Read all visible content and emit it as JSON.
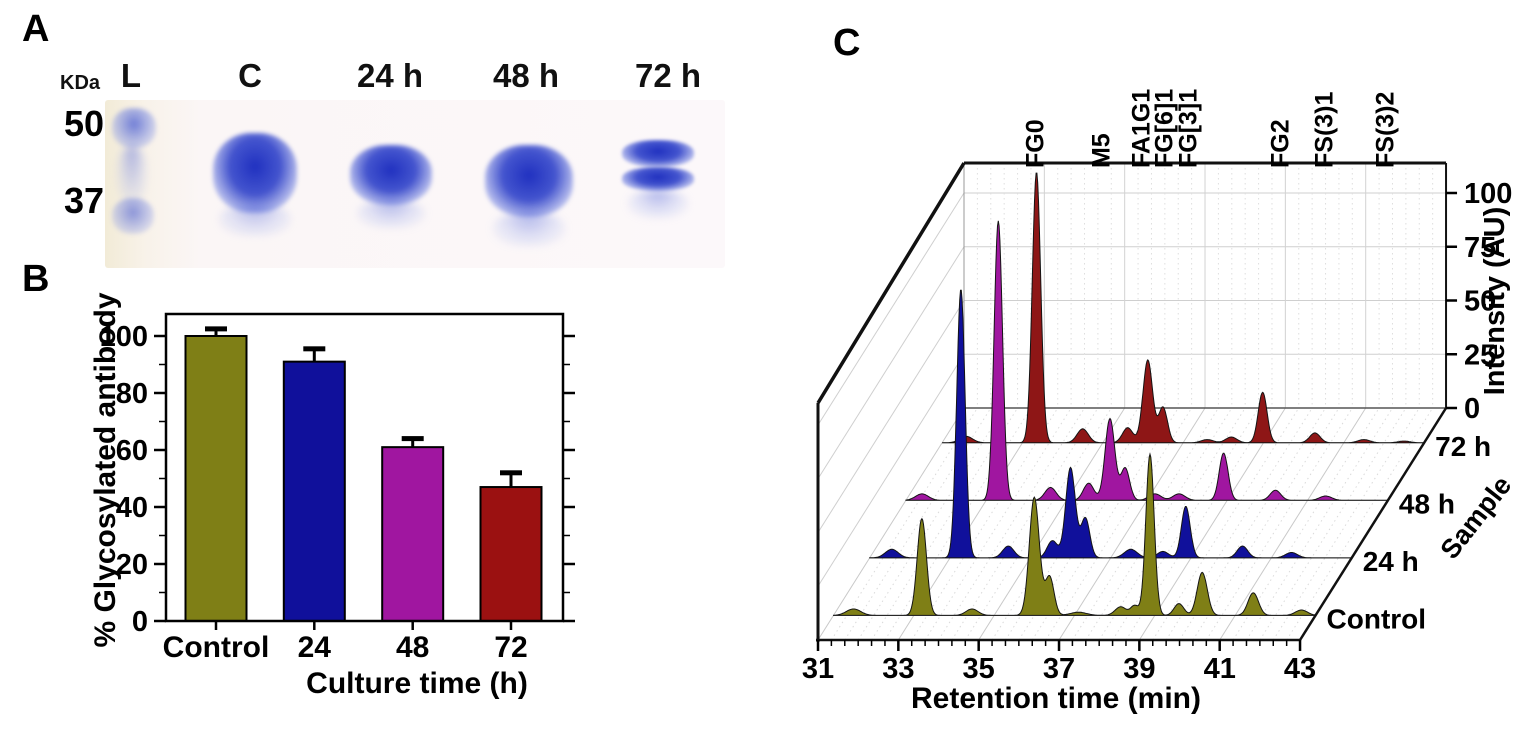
{
  "panels": {
    "a": "A",
    "b": "B",
    "c": "C"
  },
  "gel": {
    "units_label": "KDa",
    "marker_labels": [
      "50",
      "37"
    ],
    "lane_labels": [
      "L",
      "C",
      "24 h",
      "48 h",
      "72 h"
    ]
  },
  "chart_data": [
    {
      "type": "bar",
      "panel": "B",
      "categories": [
        "Control",
        "24",
        "48",
        "72"
      ],
      "values": [
        100,
        91,
        61,
        47
      ],
      "errors": [
        2.5,
        4.5,
        3,
        5
      ],
      "bar_colors": [
        "#7f7f16",
        "#10109b",
        "#a016a0",
        "#9b1111"
      ],
      "xlabel": "Culture time (h)",
      "ylabel": "% Glycosylated antibody",
      "ylim": [
        0,
        108
      ],
      "yticks": [
        0,
        20,
        40,
        60,
        80,
        100
      ],
      "grid": false,
      "legend": "none"
    },
    {
      "type": "area",
      "subtype": "3d-waterfall-chromatogram",
      "panel": "C",
      "xlabel": "Retention time (min)",
      "ylabel": "Intensity (AU)",
      "zlabel": "Sample",
      "xlim": [
        31,
        43
      ],
      "xticks": [
        31,
        33,
        35,
        37,
        39,
        41,
        43
      ],
      "yticks": [
        0,
        25,
        50,
        75,
        100
      ],
      "peak_labels": [
        {
          "text": "FG0",
          "t": 32.75
        },
        {
          "text": "M5",
          "t": 34.4
        },
        {
          "text": "FA1G1",
          "t": 35.4
        },
        {
          "text": "FG[6]1",
          "t": 35.97
        },
        {
          "text": "FG[3]1",
          "t": 36.57
        },
        {
          "text": "FG2",
          "t": 38.86
        },
        {
          "text": "FS(3)1",
          "t": 39.95
        },
        {
          "text": "FS(3)2",
          "t": 41.47
        }
      ],
      "series": [
        {
          "name": "Control",
          "color": "#7f7f16",
          "peaks": [
            [
              31.5,
              3,
              0.18
            ],
            [
              33.2,
              45,
              0.115
            ],
            [
              34.45,
              3,
              0.15
            ],
            [
              36.0,
              55,
              0.125
            ],
            [
              36.38,
              18,
              0.11
            ],
            [
              37.1,
              1.5,
              0.2
            ],
            [
              38.15,
              4,
              0.14
            ],
            [
              38.5,
              4.5,
              0.1
            ],
            [
              38.88,
              75,
              0.105
            ],
            [
              39.6,
              5.5,
              0.12
            ],
            [
              40.18,
              20,
              0.125
            ],
            [
              41.45,
              10.5,
              0.13
            ],
            [
              42.65,
              2.5,
              0.15
            ]
          ]
        },
        {
          "name": "24 h",
          "color": "#10109b",
          "peaks": [
            [
              31.55,
              4,
              0.16
            ],
            [
              33.27,
              125,
              0.105
            ],
            [
              34.45,
              5.5,
              0.14
            ],
            [
              35.55,
              8,
              0.13
            ],
            [
              36.0,
              42,
              0.12
            ],
            [
              36.37,
              18.5,
              0.11
            ],
            [
              37.5,
              4,
              0.16
            ],
            [
              38.3,
              3,
              0.14
            ],
            [
              38.87,
              24,
              0.11
            ],
            [
              40.28,
              5.5,
              0.13
            ],
            [
              41.5,
              2.5,
              0.15
            ]
          ]
        },
        {
          "name": "48 h",
          "color": "#a016a0",
          "peaks": [
            [
              31.4,
              3,
              0.16
            ],
            [
              33.3,
              130,
              0.105
            ],
            [
              34.6,
              6,
              0.14
            ],
            [
              35.55,
              8,
              0.13
            ],
            [
              36.08,
              38,
              0.12
            ],
            [
              36.46,
              15,
              0.11
            ],
            [
              37.2,
              3,
              0.15
            ],
            [
              37.8,
              3,
              0.15
            ],
            [
              38.91,
              22,
              0.11
            ],
            [
              40.2,
              4.7,
              0.13
            ],
            [
              41.45,
              2,
              0.15
            ]
          ]
        },
        {
          "name": "72 h",
          "color": "#8e1616",
          "peaks": [
            [
              31.6,
              3,
              0.16
            ],
            [
              33.35,
              126,
              0.105
            ],
            [
              34.5,
              6.5,
              0.14
            ],
            [
              35.62,
              7,
              0.13
            ],
            [
              36.12,
              38.5,
              0.12
            ],
            [
              36.5,
              16.5,
              0.11
            ],
            [
              37.6,
              1.5,
              0.15
            ],
            [
              38.2,
              2.7,
              0.14
            ],
            [
              38.98,
              23.5,
              0.11
            ],
            [
              40.28,
              4.6,
              0.13
            ],
            [
              41.5,
              1.5,
              0.15
            ],
            [
              42.5,
              0.8,
              0.15
            ]
          ]
        }
      ]
    }
  ]
}
